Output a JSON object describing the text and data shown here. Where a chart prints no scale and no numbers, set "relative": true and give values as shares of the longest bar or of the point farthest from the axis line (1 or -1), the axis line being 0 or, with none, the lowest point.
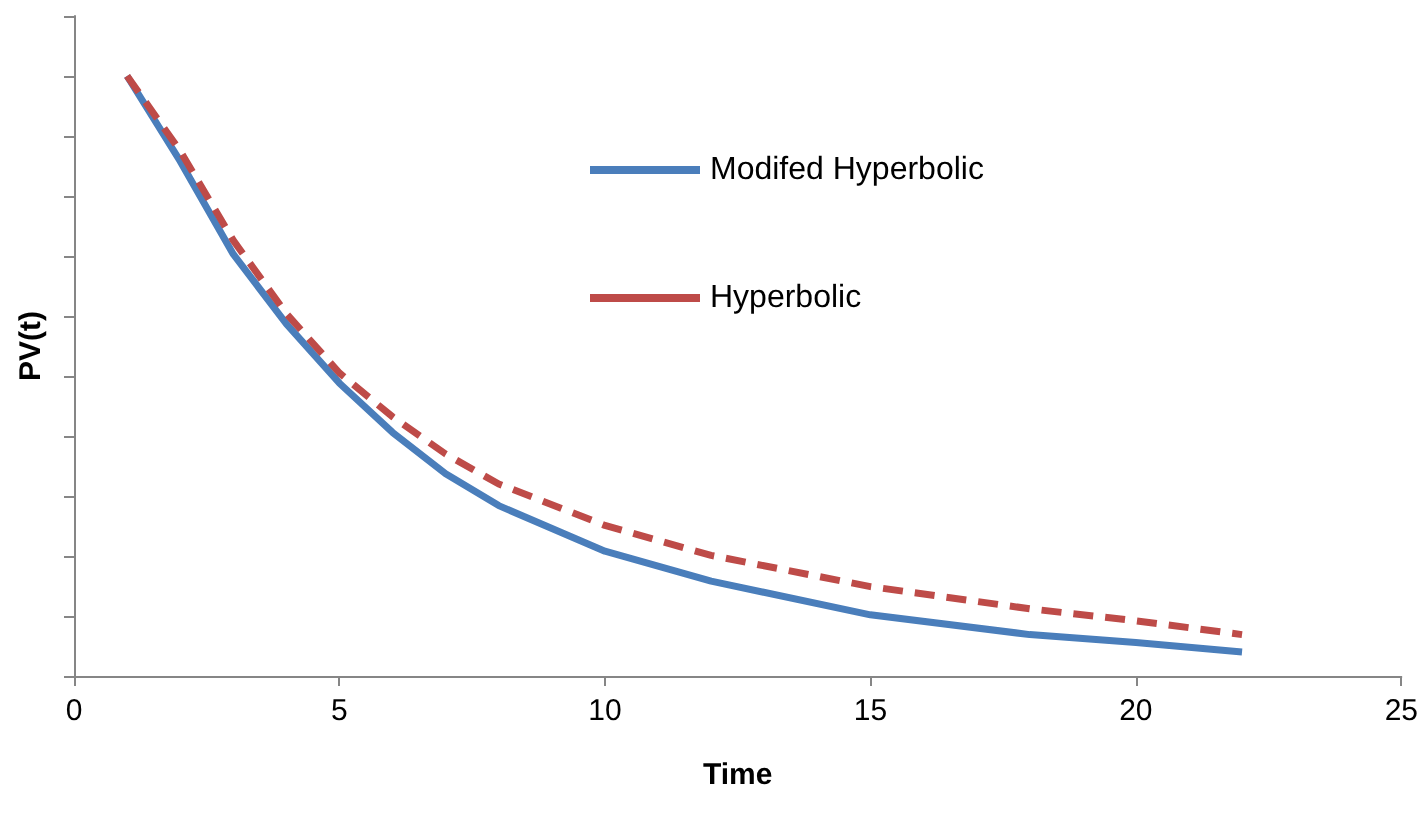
{
  "chart_data": {
    "type": "line",
    "xlabel": "Time",
    "ylabel": "PV(t)",
    "relative": true,
    "x": [
      1,
      2,
      3,
      4,
      5,
      6,
      7,
      8,
      10,
      12,
      15,
      18,
      20,
      22
    ],
    "series": [
      {
        "name": "Modifed Hyperbolic",
        "color": "#4a7ebb",
        "line_style": "solid",
        "values": [
          1,
          0.858,
          0.703,
          0.587,
          0.488,
          0.406,
          0.337,
          0.284,
          0.208,
          0.158,
          0.102,
          0.069,
          0.056,
          0.04
        ]
      },
      {
        "name": "Hyperbolic",
        "color": "#be4b48",
        "line_style": "dashed",
        "values": [
          1,
          0.875,
          0.726,
          0.604,
          0.505,
          0.432,
          0.37,
          0.32,
          0.251,
          0.201,
          0.149,
          0.112,
          0.092,
          0.069
        ]
      }
    ],
    "xlim": [
      0,
      25
    ],
    "xticks": [
      0,
      5,
      10,
      15,
      20,
      25
    ],
    "grid": false,
    "legend": "top",
    "marker": "none"
  }
}
